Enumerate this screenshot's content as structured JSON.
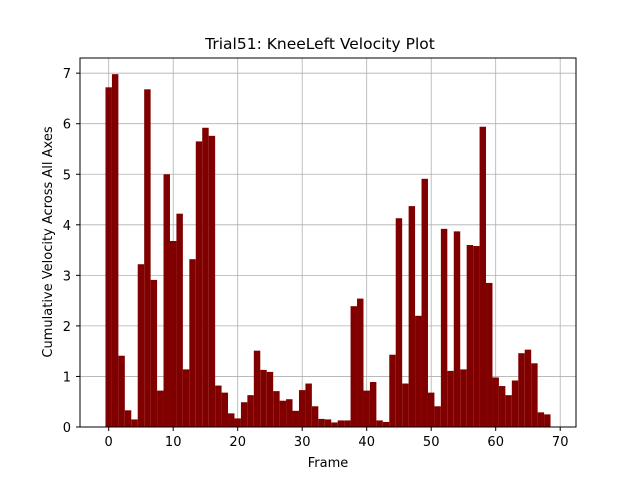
{
  "chart_data": {
    "type": "bar",
    "title": "Trial51: KneeLeft Velocity Plot",
    "xlabel": "Frame",
    "ylabel": "Cumulative Velocity Across All Axes",
    "xlim": [
      -4.45,
      72.45
    ],
    "ylim": [
      0,
      7.3
    ],
    "x_ticks": [
      0,
      10,
      20,
      30,
      40,
      50,
      60,
      70
    ],
    "y_ticks": [
      0,
      1,
      2,
      3,
      4,
      5,
      6,
      7
    ],
    "grid": true,
    "bar_color": "#800000",
    "bar_width": 1,
    "x": [
      0,
      1,
      2,
      3,
      4,
      5,
      6,
      7,
      8,
      9,
      10,
      11,
      12,
      13,
      14,
      15,
      16,
      17,
      18,
      19,
      20,
      21,
      22,
      23,
      24,
      25,
      26,
      27,
      28,
      29,
      30,
      31,
      32,
      33,
      34,
      35,
      36,
      37,
      38,
      39,
      40,
      41,
      42,
      43,
      44,
      45,
      46,
      47,
      48,
      49,
      50,
      51,
      52,
      53,
      54,
      55,
      56,
      57,
      58,
      59,
      60,
      61,
      62,
      63,
      64,
      65,
      66,
      67,
      68
    ],
    "values": [
      6.72,
      6.98,
      1.41,
      0.33,
      0.15,
      3.22,
      6.68,
      2.91,
      0.72,
      5.0,
      3.68,
      4.22,
      1.14,
      3.32,
      5.65,
      5.92,
      5.76,
      0.82,
      0.68,
      0.27,
      0.17,
      0.49,
      0.63,
      1.51,
      1.13,
      1.09,
      0.71,
      0.52,
      0.55,
      0.32,
      0.73,
      0.86,
      0.41,
      0.16,
      0.15,
      0.09,
      0.13,
      0.13,
      2.39,
      2.54,
      0.72,
      0.89,
      0.13,
      0.1,
      1.43,
      4.13,
      0.86,
      4.37,
      2.2,
      4.91,
      0.68,
      0.41,
      3.92,
      1.11,
      3.87,
      1.14,
      3.6,
      3.58,
      5.94,
      2.85,
      0.98,
      0.81,
      0.63,
      0.92,
      1.46,
      1.53,
      1.26,
      0.29,
      0.25
    ]
  }
}
